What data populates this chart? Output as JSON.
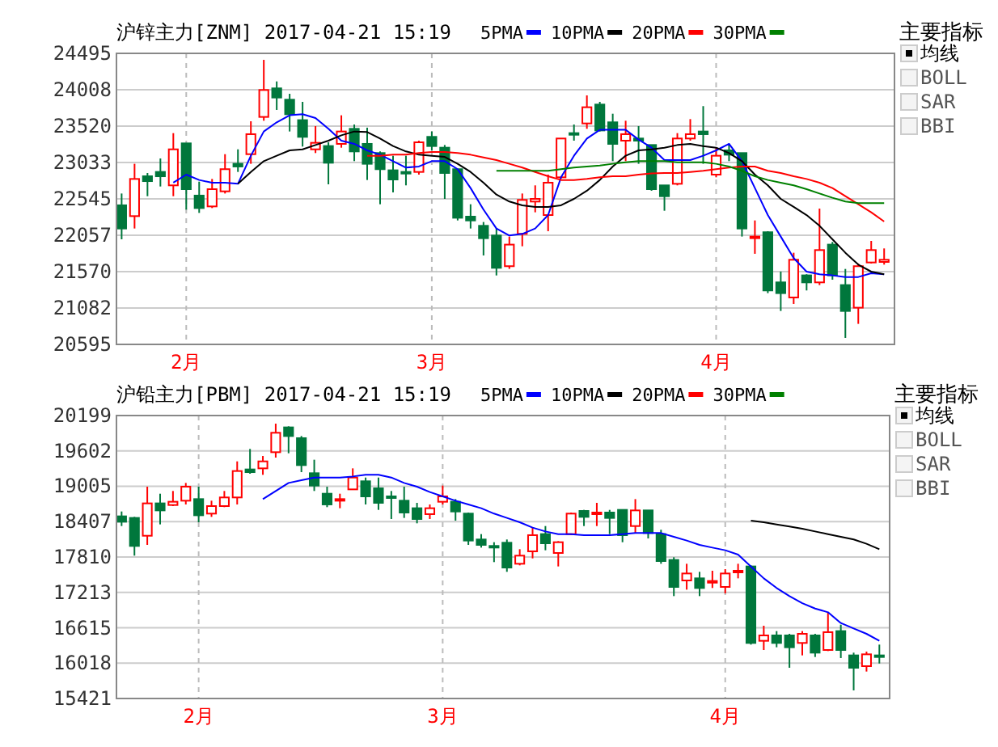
{
  "chart_data": [
    {
      "type": "candlestick",
      "title": "沪锌主力[ZNM] 2017-04-21 15:19",
      "legend": "top",
      "grid": true,
      "ylim": [
        20595,
        24495
      ],
      "yticks": [
        20595,
        21082,
        21570,
        22057,
        22545,
        23033,
        23520,
        24008,
        24495
      ],
      "annotations": [
        "主要指标",
        "均线",
        "BOLL",
        "SAR",
        "BBI"
      ],
      "categories": [
        null,
        null,
        null,
        null,
        null,
        "2月",
        null,
        null,
        null,
        null,
        null,
        null,
        null,
        null,
        null,
        null,
        null,
        null,
        null,
        null,
        null,
        null,
        null,
        null,
        "3月",
        null,
        null,
        null,
        null,
        null,
        null,
        null,
        null,
        null,
        null,
        null,
        null,
        null,
        null,
        null,
        null,
        null,
        null,
        null,
        null,
        null,
        "4月",
        null,
        null,
        null,
        null,
        null,
        null,
        null,
        null,
        null,
        null,
        null,
        null,
        null
      ],
      "ohlc": [
        [
          22459,
          22617,
          22003,
          22148
        ],
        [
          22314,
          23015,
          22148,
          22812
        ],
        [
          22848,
          22892,
          22581,
          22783
        ],
        [
          22906,
          23087,
          22711,
          22848
        ],
        [
          22726,
          23426,
          22581,
          23209
        ],
        [
          23289,
          23289,
          22401,
          22675
        ],
        [
          22589,
          22776,
          22357,
          22422
        ],
        [
          22444,
          22812,
          22422,
          22675
        ],
        [
          22646,
          23144,
          22617,
          22943
        ],
        [
          23015,
          23209,
          22906,
          22979
        ],
        [
          23144,
          23585,
          23015,
          23412
        ],
        [
          23643,
          24408,
          23592,
          24004
        ],
        [
          24026,
          24119,
          23737,
          23903
        ],
        [
          23874,
          23953,
          23448,
          23679
        ],
        [
          23600,
          23845,
          23246,
          23376
        ],
        [
          23209,
          23520,
          23159,
          23296
        ],
        [
          23253,
          23303,
          22740,
          23029
        ],
        [
          23282,
          23665,
          23231,
          23448
        ],
        [
          23484,
          23542,
          23051,
          23181
        ],
        [
          23282,
          23499,
          22798,
          23015
        ],
        [
          23159,
          23181,
          22473,
          22943
        ],
        [
          22928,
          23123,
          22632,
          22805
        ],
        [
          22906,
          23123,
          22726,
          22885
        ],
        [
          22906,
          23325,
          22870,
          23303
        ],
        [
          23376,
          23448,
          23195,
          23253
        ],
        [
          23231,
          23267,
          22545,
          22892
        ],
        [
          22943,
          22943,
          22256,
          22292
        ],
        [
          22307,
          22473,
          22148,
          22256
        ],
        [
          22184,
          22235,
          21787,
          22018
        ],
        [
          22054,
          22148,
          21519,
          21621
        ],
        [
          21643,
          22040,
          21607,
          21932
        ],
        [
          22076,
          22617,
          21910,
          22531
        ],
        [
          22509,
          22726,
          22365,
          22545
        ],
        [
          22328,
          22870,
          22112,
          22762
        ],
        [
          22834,
          23354,
          22820,
          23354
        ],
        [
          23426,
          23542,
          23325,
          23412
        ],
        [
          23556,
          23932,
          23484,
          23773
        ],
        [
          23809,
          23845,
          23448,
          23462
        ],
        [
          23571,
          23686,
          23051,
          23282
        ],
        [
          23325,
          23592,
          23051,
          23412
        ],
        [
          23354,
          23520,
          23015,
          23325
        ],
        [
          23267,
          23267,
          22654,
          22675
        ],
        [
          22726,
          22726,
          22386,
          22581
        ],
        [
          22747,
          23426,
          22726,
          23354
        ],
        [
          23354,
          23614,
          23325,
          23412
        ],
        [
          23448,
          23788,
          23015,
          23412
        ],
        [
          22870,
          23231,
          22834,
          23123
        ],
        [
          23195,
          23267,
          23051,
          23137
        ],
        [
          23159,
          23159,
          22040,
          22148
        ],
        [
          22025,
          22256,
          21809,
          22040
        ],
        [
          22098,
          22112,
          21282,
          21318
        ],
        [
          21426,
          21571,
          21043,
          21282
        ],
        [
          21224,
          21823,
          21137,
          21729
        ],
        [
          21520,
          21535,
          21318,
          21426
        ],
        [
          21426,
          22415,
          21390,
          21859
        ],
        [
          21932,
          21968,
          21462,
          21520
        ],
        [
          21390,
          21606,
          20682,
          21043
        ],
        [
          21087,
          21679,
          20870,
          21643
        ],
        [
          21693,
          21982,
          21679,
          21859
        ],
        [
          21700,
          21881,
          21664,
          21729
        ]
      ],
      "colors": [
        "#00773c",
        "#ff0000",
        "#00773c",
        "#00773c",
        "#ff0000",
        "#00773c",
        "#00773c",
        "#ff0000",
        "#ff0000",
        "#00773c",
        "#ff0000",
        "#ff0000",
        "#00773c",
        "#00773c",
        "#00773c",
        "#ff0000",
        "#00773c",
        "#ff0000",
        "#00773c",
        "#00773c",
        "#00773c",
        "#00773c",
        "#00773c",
        "#ff0000",
        "#00773c",
        "#00773c",
        "#00773c",
        "#00773c",
        "#00773c",
        "#00773c",
        "#ff0000",
        "#ff0000",
        "#ff0000",
        "#ff0000",
        "#ff0000",
        "#00773c",
        "#ff0000",
        "#00773c",
        "#00773c",
        "#ff0000",
        "#00773c",
        "#00773c",
        "#00773c",
        "#ff0000",
        "#ff0000",
        "#00773c",
        "#ff0000",
        "#00773c",
        "#00773c",
        "#ff0000",
        "#00773c",
        "#00773c",
        "#ff0000",
        "#00773c",
        "#ff0000",
        "#00773c",
        "#00773c",
        "#ff0000",
        "#ff0000",
        "#ff0000"
      ],
      "series": [
        {
          "name": "5PMA",
          "type": "line",
          "color": "#0000ff",
          "values": [
            null,
            null,
            null,
            null,
            22762,
            22870,
            22798,
            22762,
            22762,
            22747,
            23123,
            23448,
            23571,
            23665,
            23679,
            23628,
            23484,
            23325,
            23282,
            23195,
            23137,
            23051,
            22964,
            22979,
            23051,
            23051,
            22943,
            22690,
            22401,
            22148,
            22054,
            22076,
            22148,
            22328,
            22834,
            23123,
            23354,
            23470,
            23470,
            23470,
            23340,
            23231,
            23065,
            23065,
            23065,
            23123,
            23195,
            23282,
            23051,
            22690,
            22328,
            22040,
            21751,
            21570,
            21534,
            21520,
            21498,
            21498,
            21549,
            21534
          ]
        },
        {
          "name": "10PMA",
          "type": "line",
          "color": "#000000",
          "values": [
            null,
            null,
            null,
            null,
            null,
            null,
            null,
            null,
            null,
            22747,
            22906,
            23051,
            23123,
            23195,
            23209,
            23267,
            23325,
            23397,
            23448,
            23441,
            23354,
            23253,
            23181,
            23137,
            23123,
            23108,
            23015,
            22906,
            22762,
            22603,
            22509,
            22459,
            22437,
            22437,
            22459,
            22545,
            22654,
            22798,
            22979,
            23123,
            23195,
            23209,
            23231,
            23267,
            23282,
            23253,
            23231,
            23159,
            23051,
            22870,
            22726,
            22545,
            22437,
            22328,
            22184,
            22003,
            21823,
            21664,
            21570,
            21534
          ]
        },
        {
          "name": "20PMA",
          "type": "line",
          "color": "#ff0000",
          "values": [
            null,
            null,
            null,
            null,
            null,
            null,
            null,
            null,
            null,
            null,
            null,
            null,
            null,
            null,
            null,
            null,
            null,
            null,
            null,
            23123,
            23123,
            23137,
            23137,
            23159,
            23173,
            23173,
            23159,
            23137,
            23101,
            23065,
            23015,
            22964,
            22906,
            22848,
            22798,
            22798,
            22812,
            22834,
            22848,
            22848,
            22870,
            22885,
            22892,
            22892,
            22906,
            22921,
            22943,
            22964,
            22979,
            22979,
            22921,
            22892,
            22848,
            22812,
            22762,
            22690,
            22581,
            22473,
            22365,
            22242
          ]
        },
        {
          "name": "30PMA",
          "type": "line",
          "color": "#008000",
          "values": [
            null,
            null,
            null,
            null,
            null,
            null,
            null,
            null,
            null,
            null,
            null,
            null,
            null,
            null,
            null,
            null,
            null,
            null,
            null,
            null,
            null,
            null,
            null,
            null,
            null,
            null,
            null,
            null,
            null,
            22921,
            22921,
            22921,
            22921,
            22921,
            22943,
            22964,
            22979,
            22993,
            23015,
            23036,
            23051,
            23051,
            23051,
            23036,
            23036,
            23036,
            23015,
            22979,
            22921,
            22848,
            22798,
            22762,
            22726,
            22675,
            22617,
            22560,
            22509,
            22487,
            22487,
            22487
          ]
        }
      ]
    },
    {
      "type": "candlestick",
      "title": "沪铅主力[PBM] 2017-04-21 15:19",
      "legend": "top",
      "grid": true,
      "ylim": [
        15421,
        20199
      ],
      "yticks": [
        15421,
        16018,
        16615,
        17213,
        17810,
        18407,
        19005,
        19602,
        20199
      ],
      "annotations": [
        "主要指标",
        "均线",
        "BOLL",
        "SAR",
        "BBI"
      ],
      "categories": [
        null,
        null,
        null,
        null,
        null,
        null,
        "2月",
        null,
        null,
        null,
        null,
        null,
        null,
        null,
        null,
        null,
        null,
        null,
        null,
        null,
        null,
        null,
        null,
        null,
        null,
        "3月",
        null,
        null,
        null,
        null,
        null,
        null,
        null,
        null,
        null,
        null,
        null,
        null,
        null,
        null,
        null,
        null,
        null,
        null,
        null,
        null,
        null,
        "4月",
        null,
        null,
        null,
        null,
        null,
        null,
        null,
        null,
        null,
        null,
        null,
        null
      ],
      "ohlc": [
        [
          18497,
          18579,
          18333,
          18406
        ],
        [
          18470,
          18488,
          17833,
          17997
        ],
        [
          18169,
          18998,
          18015,
          18716
        ],
        [
          18716,
          18879,
          18361,
          18597
        ],
        [
          18688,
          18925,
          18670,
          18743
        ],
        [
          18761,
          19061,
          18697,
          18998
        ],
        [
          18788,
          18998,
          18397,
          18515
        ],
        [
          18543,
          18761,
          18488,
          18670
        ],
        [
          18670,
          18925,
          18652,
          18816
        ],
        [
          18816,
          19425,
          18697,
          19262
        ],
        [
          19289,
          19635,
          19216,
          19243
        ],
        [
          19307,
          19516,
          19198,
          19425
        ],
        [
          19580,
          20062,
          19489,
          19908
        ],
        [
          19999,
          20017,
          19562,
          19853
        ],
        [
          19817,
          19853,
          19243,
          19362
        ],
        [
          19225,
          19453,
          18925,
          19016
        ],
        [
          18879,
          18998,
          18652,
          18698
        ],
        [
          18770,
          18879,
          18634,
          18788
        ],
        [
          18952,
          19307,
          18943,
          19152
        ],
        [
          19089,
          19152,
          18697,
          18834
        ],
        [
          18970,
          19152,
          18606,
          18725
        ],
        [
          18834,
          18925,
          18452,
          18816
        ],
        [
          18761,
          18998,
          18470,
          18561
        ],
        [
          18634,
          18725,
          18379,
          18452
        ],
        [
          18534,
          18697,
          18452,
          18634
        ],
        [
          18743,
          19016,
          18697,
          18834
        ],
        [
          18743,
          18788,
          18424,
          18579
        ],
        [
          18543,
          18561,
          18015,
          18088
        ],
        [
          18106,
          18197,
          17969,
          18015
        ],
        [
          17997,
          18060,
          17724,
          17979
        ],
        [
          18051,
          18106,
          17560,
          17632
        ],
        [
          17696,
          17942,
          17669,
          17833
        ],
        [
          17906,
          18306,
          17787,
          18179
        ],
        [
          18197,
          18333,
          17924,
          18042
        ],
        [
          17878,
          18078,
          17651,
          18060
        ],
        [
          18197,
          18561,
          18179,
          18543
        ],
        [
          18588,
          18606,
          18333,
          18488
        ],
        [
          18543,
          18725,
          18333,
          18561
        ],
        [
          18561,
          18606,
          18197,
          18470
        ],
        [
          18606,
          18606,
          18060,
          18179
        ],
        [
          18333,
          18788,
          18215,
          18597
        ],
        [
          18597,
          18597,
          18124,
          18215
        ],
        [
          18197,
          18270,
          17696,
          17742
        ],
        [
          17760,
          17806,
          17150,
          17305
        ],
        [
          17414,
          17696,
          17259,
          17532
        ],
        [
          17450,
          17560,
          17150,
          17287
        ],
        [
          17377,
          17578,
          17287,
          17405
        ],
        [
          17305,
          17605,
          17196,
          17532
        ],
        [
          17560,
          17696,
          17450,
          17578
        ],
        [
          17651,
          17669,
          16331,
          16359
        ],
        [
          16395,
          16650,
          16240,
          16486
        ],
        [
          16486,
          16559,
          16286,
          16359
        ],
        [
          16486,
          16513,
          15940,
          16286
        ],
        [
          16359,
          16559,
          16149,
          16513
        ],
        [
          16486,
          16513,
          16122,
          16195
        ],
        [
          16240,
          16877,
          16222,
          16541
        ],
        [
          16559,
          16668,
          16104,
          16240
        ],
        [
          16149,
          16195,
          15558,
          15940
        ],
        [
          15967,
          16213,
          15876,
          16167
        ],
        [
          16149,
          16331,
          16012,
          16122
        ]
      ],
      "colors": [
        "#00773c",
        "#00773c",
        "#ff0000",
        "#00773c",
        "#ff0000",
        "#ff0000",
        "#00773c",
        "#ff0000",
        "#ff0000",
        "#ff0000",
        "#00773c",
        "#ff0000",
        "#ff0000",
        "#00773c",
        "#00773c",
        "#00773c",
        "#00773c",
        "#ff0000",
        "#ff0000",
        "#00773c",
        "#00773c",
        "#00773c",
        "#00773c",
        "#00773c",
        "#ff0000",
        "#ff0000",
        "#00773c",
        "#00773c",
        "#00773c",
        "#00773c",
        "#00773c",
        "#ff0000",
        "#ff0000",
        "#00773c",
        "#ff0000",
        "#ff0000",
        "#00773c",
        "#ff0000",
        "#00773c",
        "#00773c",
        "#ff0000",
        "#00773c",
        "#00773c",
        "#00773c",
        "#ff0000",
        "#00773c",
        "#ff0000",
        "#ff0000",
        "#ff0000",
        "#00773c",
        "#ff0000",
        "#00773c",
        "#00773c",
        "#ff0000",
        "#00773c",
        "#ff0000",
        "#00773c",
        "#00773c",
        "#ff0000",
        "#00773c"
      ],
      "series": [
        {
          "name": "5PMA",
          "type": "line",
          "color": "#0000ff",
          "values": [
            null,
            null,
            null,
            null,
            null,
            null,
            null,
            null,
            null,
            null,
            null,
            18788,
            18925,
            19061,
            19107,
            19152,
            19152,
            19152,
            19170,
            19198,
            19198,
            19152,
            19061,
            18998,
            18907,
            18834,
            18761,
            18697,
            18634,
            18543,
            18470,
            18397,
            18306,
            18242,
            18197,
            18197,
            18179,
            18179,
            18179,
            18197,
            18215,
            18215,
            18215,
            18151,
            18088,
            18015,
            17969,
            17924,
            17851,
            17651,
            17450,
            17287,
            17150,
            17031,
            16940,
            16877,
            16695,
            16604,
            16513,
            16395
          ]
        },
        {
          "name": "10PMA",
          "type": "line",
          "color": "#000000",
          "values": [
            null,
            null,
            null,
            null,
            null,
            null,
            null,
            null,
            null,
            null,
            null,
            null,
            null,
            null,
            null,
            null,
            null,
            null,
            null,
            null,
            null,
            null,
            null,
            null,
            null,
            null,
            null,
            null,
            null,
            null,
            null,
            null,
            null,
            null,
            null,
            null,
            null,
            null,
            null,
            null,
            null,
            null,
            null,
            null,
            null,
            null,
            null,
            null,
            null,
            18424,
            18397,
            18361,
            18324,
            18288,
            18242,
            18197,
            18151,
            18106,
            18033,
            17942
          ]
        },
        {
          "name": "20PMA",
          "type": "line",
          "color": "#ff0000",
          "values": [
            null,
            null,
            null,
            null,
            null,
            null,
            null,
            null,
            null,
            null,
            null,
            null,
            null,
            null,
            null,
            null,
            null,
            null,
            null,
            null,
            null,
            null,
            null,
            null,
            null,
            null,
            null,
            null,
            null,
            null,
            null,
            null,
            null,
            null,
            null,
            null,
            null,
            null,
            null,
            null,
            null,
            null,
            null,
            null,
            null,
            null,
            null,
            null,
            null,
            null,
            null,
            null,
            null,
            null,
            null,
            null,
            null,
            null,
            null,
            null
          ]
        },
        {
          "name": "30PMA",
          "type": "line",
          "color": "#008000",
          "values": [
            null,
            null,
            null,
            null,
            null,
            null,
            null,
            null,
            null,
            null,
            null,
            null,
            null,
            null,
            null,
            null,
            null,
            null,
            null,
            null,
            null,
            null,
            null,
            null,
            null,
            null,
            null,
            null,
            null,
            null,
            null,
            null,
            null,
            null,
            null,
            null,
            null,
            null,
            null,
            null,
            null,
            null,
            null,
            null,
            null,
            null,
            null,
            null,
            null,
            null,
            null,
            null,
            null,
            null,
            null,
            null,
            null,
            null,
            null,
            null
          ]
        }
      ]
    }
  ]
}
